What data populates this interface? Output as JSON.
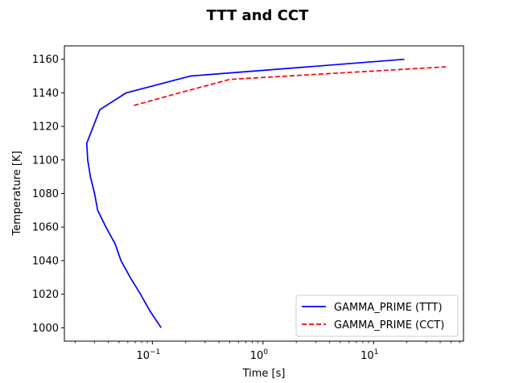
{
  "chart_data": {
    "type": "line",
    "title": "TTT and CCT",
    "xlabel": "Time [s]",
    "ylabel": "Temperature [K]",
    "xscale": "log",
    "xlim": [
      0.016,
      65
    ],
    "ylim": [
      992,
      1168
    ],
    "xticks": [
      {
        "value": 0.1,
        "label": "10",
        "exp": "−1"
      },
      {
        "value": 1,
        "label": "10",
        "exp": "0"
      },
      {
        "value": 10,
        "label": "10",
        "exp": "1"
      }
    ],
    "yticks": [
      1000,
      1020,
      1040,
      1060,
      1080,
      1100,
      1120,
      1140,
      1160
    ],
    "legend_position": "lower-right",
    "grid": false,
    "series": [
      {
        "name": "GAMMA_PRIME (TTT)",
        "color": "#0000ff",
        "style": "solid",
        "points": [
          [
            0.12,
            1000
          ],
          [
            0.095,
            1010
          ],
          [
            0.078,
            1020
          ],
          [
            0.063,
            1030
          ],
          [
            0.052,
            1040
          ],
          [
            0.046,
            1050
          ],
          [
            0.038,
            1060
          ],
          [
            0.032,
            1070
          ],
          [
            0.03,
            1080
          ],
          [
            0.0275,
            1090
          ],
          [
            0.026,
            1100
          ],
          [
            0.0255,
            1110
          ],
          [
            0.0335,
            1130
          ],
          [
            0.058,
            1140
          ],
          [
            0.22,
            1150
          ],
          [
            19,
            1160
          ]
        ]
      },
      {
        "name": "GAMMA_PRIME (CCT)",
        "color": "#ff0000",
        "style": "dashed",
        "points": [
          [
            0.068,
            1132.5
          ],
          [
            0.2,
            1141
          ],
          [
            0.5,
            1148
          ],
          [
            3,
            1151
          ],
          [
            45,
            1155.5
          ]
        ]
      }
    ]
  }
}
